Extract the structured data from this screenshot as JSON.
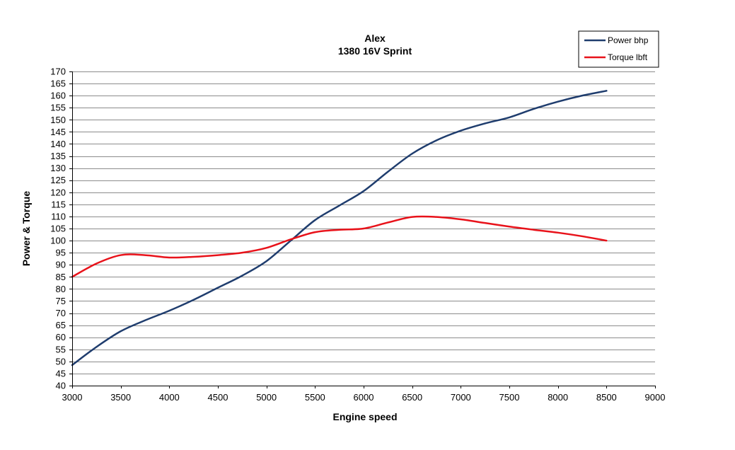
{
  "chart_data": {
    "type": "line",
    "title": "Alex",
    "subtitle": "1380 16V Sprint",
    "xlabel": "Engine speed",
    "ylabel": "Power & Torque",
    "xlim": [
      3000,
      9000
    ],
    "ylim": [
      40,
      170
    ],
    "x_ticks": [
      3000,
      3500,
      4000,
      4500,
      5000,
      5500,
      6000,
      6500,
      7000,
      7500,
      8000,
      8500,
      9000
    ],
    "y_ticks": [
      40,
      45,
      50,
      55,
      60,
      65,
      70,
      75,
      80,
      85,
      90,
      95,
      100,
      105,
      110,
      115,
      120,
      125,
      130,
      135,
      140,
      145,
      150,
      155,
      160,
      165,
      170
    ],
    "grid": true,
    "legend_position": "top-right",
    "series": [
      {
        "name": "Power bhp",
        "color": "#1f3d6e",
        "x": [
          3000,
          3250,
          3500,
          3750,
          4000,
          4250,
          4500,
          4750,
          5000,
          5250,
          5500,
          5750,
          6000,
          6250,
          6500,
          6750,
          7000,
          7250,
          7500,
          7750,
          8000,
          8250,
          8500
        ],
        "values": [
          48.5,
          56,
          62.5,
          67,
          71,
          75.5,
          80.5,
          85.5,
          91.5,
          100,
          108.5,
          114.5,
          120.5,
          128.5,
          136,
          141.5,
          145.5,
          148.5,
          151,
          154.5,
          157.5,
          160,
          162
        ]
      },
      {
        "name": "Torque lbft",
        "color": "#e8121a",
        "x": [
          3000,
          3250,
          3500,
          3750,
          4000,
          4250,
          4500,
          4750,
          5000,
          5250,
          5500,
          5750,
          6000,
          6250,
          6500,
          6750,
          7000,
          7250,
          7500,
          7750,
          8000,
          8250,
          8500
        ],
        "values": [
          85,
          90.5,
          94,
          94,
          93,
          93.3,
          94,
          95,
          97,
          100.5,
          103.5,
          104.5,
          105,
          107.5,
          109.8,
          109.8,
          108.8,
          107.3,
          105.8,
          104.5,
          103.3,
          101.8,
          100
        ]
      }
    ]
  }
}
